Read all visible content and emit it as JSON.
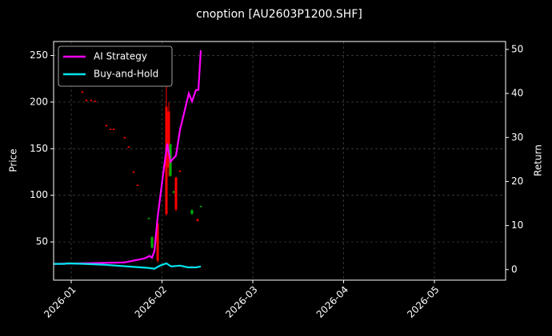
{
  "chart_data": {
    "type": "candlestick",
    "title": "cnoption [AU2603P1200.SHF]",
    "ylabel": "Price",
    "y2label": "Return",
    "xlim": [
      0.806,
      5.784
    ],
    "xticks": [
      {
        "value": 1,
        "label": "2026-01"
      },
      {
        "value": 2,
        "label": "2026-02"
      },
      {
        "value": 3,
        "label": "2026-03"
      },
      {
        "value": 4,
        "label": "2026-04"
      },
      {
        "value": 5,
        "label": "2026-05"
      }
    ],
    "ylim": [
      9,
      265
    ],
    "yticks": [
      50,
      100,
      150,
      200,
      250
    ],
    "y2lim": [
      -2.4,
      51.8
    ],
    "y2ticks": [
      0,
      10,
      20,
      30,
      40,
      50
    ],
    "grid": true,
    "legend": "upper left",
    "up_color": "#00b000",
    "down_color": "#ff0000",
    "candles": {
      "x": [
        1.123,
        1.167,
        1.22,
        1.264,
        1.388,
        1.432,
        1.467,
        1.59,
        1.634,
        1.687,
        1.731,
        1.855,
        1.89,
        1.952,
        2.048,
        2.075,
        2.093,
        2.128,
        2.154,
        2.198,
        2.33,
        2.392,
        2.427
      ],
      "open": [
        211,
        202,
        202,
        201,
        175,
        171,
        171,
        162,
        152,
        125,
        111,
        75,
        44,
        70,
        195,
        190,
        121,
        103,
        119,
        126,
        80,
        74,
        88
      ],
      "high": [
        212,
        203,
        203,
        202,
        176,
        172,
        172,
        163,
        153,
        126,
        112,
        76,
        56,
        75,
        254,
        200,
        155,
        105,
        120,
        127,
        85,
        75,
        89
      ],
      "low": [
        210,
        201,
        201,
        200,
        174,
        170,
        170,
        161,
        151,
        124,
        110,
        74,
        43,
        28,
        78,
        120,
        120,
        102,
        83,
        125,
        79,
        72,
        87
      ],
      "close": [
        210,
        201,
        201.5,
        200.5,
        174.5,
        170.5,
        170.5,
        161.5,
        151.5,
        124.5,
        110.5,
        75.5,
        55,
        30,
        80,
        130,
        155,
        104,
        85,
        125.5,
        84,
        72.5,
        88.5
      ]
    },
    "series": [
      {
        "name": "AI Strategy",
        "color": "#ff00ff",
        "axis": "y2",
        "x": [
          0.806,
          1.581,
          1.802,
          1.863,
          1.89,
          1.916,
          1.952,
          2.022,
          2.057,
          2.093,
          2.154,
          2.198,
          2.295,
          2.33,
          2.374,
          2.401,
          2.427
        ],
        "values": [
          1.3,
          1.6,
          2.5,
          3.1,
          2.7,
          4.2,
          12,
          23.2,
          28.6,
          24.5,
          25.9,
          31.7,
          40,
          38.2,
          40.8,
          40.8,
          49.8
        ]
      },
      {
        "name": "Buy-and-Hold",
        "color": "#00e5ee",
        "axis": "y2",
        "x": [
          0.806,
          0.921,
          0.965,
          1.141,
          1.361,
          1.626,
          1.846,
          1.916,
          1.978,
          2.048,
          2.101,
          2.198,
          2.286,
          2.374,
          2.427
        ],
        "values": [
          1.3,
          1.3,
          1.4,
          1.3,
          1.1,
          0.7,
          0.4,
          0.2,
          0.9,
          1.4,
          0.7,
          0.9,
          0.5,
          0.5,
          0.7
        ]
      }
    ]
  }
}
